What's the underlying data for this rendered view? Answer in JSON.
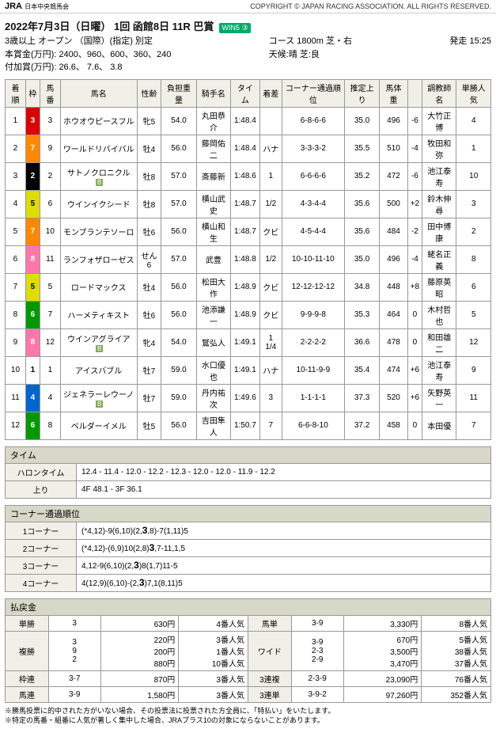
{
  "header": {
    "logo": "JRA",
    "logo_sub": "日本中央競馬会",
    "copyright": "COPYRIGHT © JAPAN RACING ASSOCIATION. ALL RIGHTS RESERVED."
  },
  "race": {
    "title": "2022年7月3日（日曜） 1回 函館8日 11R 巴賞",
    "win5_badge": "WIN5 ③",
    "grade": "3歳以上 オープン （国際）(指定) 別定",
    "prize": "本賞金(万円): 2400、960、600、360、240",
    "added": "付加賞(万円): 26.6、 7.6、 3.8",
    "course": "コース 1800m 芝・右",
    "weather": "天候:晴 芝:良",
    "start_time": "発走 15:25"
  },
  "cols": [
    "着順",
    "枠",
    "馬番",
    "馬名",
    "性齢",
    "負担重量",
    "騎手名",
    "タイム",
    "着差",
    "コーナー通過順位",
    "推定上り",
    "馬体重",
    "",
    "調教師名",
    "単勝人気"
  ],
  "rows": [
    {
      "rank": "1",
      "waku": "3",
      "wakuCls": "waku-3",
      "num": "3",
      "name": "ホウオウピースフル",
      "b": "",
      "sex": "牝5",
      "wt": "54.0",
      "jk": "丸田恭介",
      "time": "1:48.4",
      "mg": "",
      "cp": "6-8-6-6",
      "ag": "35.0",
      "bw": "496",
      "bd": "-6",
      "tr": "大竹正博",
      "pop": "4"
    },
    {
      "rank": "2",
      "waku": "7",
      "wakuCls": "waku-7",
      "num": "9",
      "name": "ワールドリバイバル",
      "b": "",
      "sex": "牡4",
      "wt": "56.0",
      "jk": "藤岡佑二",
      "time": "1:48.4",
      "mg": "ハナ",
      "cp": "3-3-3-2",
      "ag": "35.5",
      "bw": "510",
      "bd": "-4",
      "tr": "牧田和弥",
      "pop": "1"
    },
    {
      "rank": "3",
      "waku": "2",
      "wakuCls": "waku-2",
      "num": "2",
      "name": "サトノクロニクル",
      "b": "B",
      "sex": "牡8",
      "wt": "57.0",
      "jk": "斎藤新",
      "time": "1:48.6",
      "mg": "1",
      "cp": "6-6-6-6",
      "ag": "35.2",
      "bw": "472",
      "bd": "-6",
      "tr": "池江泰寿",
      "pop": "10"
    },
    {
      "rank": "4",
      "waku": "5",
      "wakuCls": "waku-5",
      "num": "6",
      "name": "ウインイクシード",
      "b": "",
      "sex": "牡8",
      "wt": "57.0",
      "jk": "横山武史",
      "time": "1:48.7",
      "mg": "1/2",
      "cp": "4-3-4-4",
      "ag": "35.6",
      "bw": "500",
      "bd": "+2",
      "tr": "鈴木伸尋",
      "pop": "3"
    },
    {
      "rank": "5",
      "waku": "7",
      "wakuCls": "waku-7",
      "num": "10",
      "name": "モンブランテソーロ",
      "b": "",
      "sex": "牡6",
      "wt": "56.0",
      "jk": "横山和生",
      "time": "1:48.7",
      "mg": "クビ",
      "cp": "4-5-4-4",
      "ag": "35.6",
      "bw": "484",
      "bd": "-2",
      "tr": "田中博康",
      "pop": "2"
    },
    {
      "rank": "6",
      "waku": "8",
      "wakuCls": "waku-8",
      "num": "11",
      "name": "ランフォザローゼス",
      "b": "",
      "sex": "せん6",
      "wt": "57.0",
      "jk": "武豊",
      "time": "1:48.8",
      "mg": "1/2",
      "cp": "10-10-11-10",
      "ag": "35.0",
      "bw": "496",
      "bd": "-4",
      "tr": "蛯名正義",
      "pop": "8"
    },
    {
      "rank": "7",
      "waku": "5",
      "wakuCls": "waku-5",
      "num": "5",
      "name": "ロードマックス",
      "b": "",
      "sex": "牡4",
      "wt": "56.0",
      "jk": "松田大作",
      "time": "1:48.9",
      "mg": "クビ",
      "cp": "12-12-12-12",
      "ag": "34.8",
      "bw": "448",
      "bd": "+8",
      "tr": "藤原英昭",
      "pop": "6"
    },
    {
      "rank": "8",
      "waku": "6",
      "wakuCls": "waku-6",
      "num": "7",
      "name": "ハーメティキスト",
      "b": "",
      "sex": "牡6",
      "wt": "56.0",
      "jk": "池添謙一",
      "time": "1:48.9",
      "mg": "クビ",
      "cp": "9-9-9-8",
      "ag": "35.3",
      "bw": "464",
      "bd": "0",
      "tr": "木村哲也",
      "pop": "5"
    },
    {
      "rank": "9",
      "waku": "8",
      "wakuCls": "waku-8",
      "num": "12",
      "name": "ウインアグライア",
      "b": "B",
      "sex": "牝4",
      "wt": "54.0",
      "jk": "鷲弘人",
      "time": "1:49.1",
      "mg": "1 1/4",
      "cp": "2-2-2-2",
      "ag": "36.6",
      "bw": "478",
      "bd": "0",
      "tr": "和田雄二",
      "pop": "12"
    },
    {
      "rank": "10",
      "waku": "1",
      "wakuCls": "waku-1",
      "num": "1",
      "name": "アイスバブル",
      "b": "",
      "sex": "牡7",
      "wt": "59.0",
      "jk": "水口優也",
      "time": "1:49.1",
      "mg": "ハナ",
      "cp": "10-11-9-9",
      "ag": "35.4",
      "bw": "474",
      "bd": "+6",
      "tr": "池江泰寿",
      "pop": "9"
    },
    {
      "rank": "11",
      "waku": "4",
      "wakuCls": "waku-4",
      "num": "4",
      "name": "ジェネラーレウーノ",
      "b": "B",
      "sex": "牡7",
      "wt": "59.0",
      "jk": "丹内祐次",
      "time": "1:49.6",
      "mg": "3",
      "cp": "1-1-1-1",
      "ag": "37.3",
      "bw": "520",
      "bd": "+6",
      "tr": "矢野英一",
      "pop": "11"
    },
    {
      "rank": "12",
      "waku": "6",
      "wakuCls": "waku-6",
      "num": "8",
      "name": "ベルダーイメル",
      "b": "",
      "sex": "牡5",
      "wt": "56.0",
      "jk": "吉田隼人",
      "time": "1:50.7",
      "mg": "7",
      "cp": "6-6-8-10",
      "ag": "37.2",
      "bw": "458",
      "bd": "0",
      "tr": "本田優",
      "pop": "7"
    }
  ],
  "time_section": {
    "title": "タイム",
    "furlong_label": "ハロンタイム",
    "furlong": "12.4 - 11.4 - 12.0 - 12.2 - 12.3 - 12.0 - 12.0 - 11.9 - 12.2",
    "agari_label": "上り",
    "agari": "4F 48.1 - 3F 36.1"
  },
  "corner": {
    "title": "コーナー通過順位",
    "labels": [
      "1コーナー",
      "2コーナー",
      "3コーナー",
      "4コーナー"
    ],
    "vals": [
      [
        "(*4,12)-9(6,10)(2,",
        "3",
        ",8)-7(1,11)5"
      ],
      [
        "(*4,12)-(6,9)10(2,8)",
        "3",
        ",7-11,1,5"
      ],
      [
        "4,12-9(6,10)(2,",
        "3",
        ")8(1,7)11-5"
      ],
      [
        "4(12,9)(6,10)-(2,",
        "3",
        ")7,1(8,11)5"
      ]
    ]
  },
  "payout": {
    "title": "払戻金",
    "rows": [
      [
        {
          "lbl": "単勝",
          "c": "3",
          "y": "630円",
          "p": "4番人気"
        },
        {
          "lbl": "馬単",
          "c": "3-9",
          "y": "3,330円",
          "p": "8番人気"
        }
      ],
      [
        {
          "lbl": "複勝",
          "c": "3\n9\n2",
          "y": "220円\n200円\n880円",
          "p": "3番人気\n1番人気\n10番人気"
        },
        {
          "lbl": "ワイド",
          "c": "3-9\n2-3\n2-9",
          "y": "670円\n3,500円\n3,470円",
          "p": "5番人気\n38番人気\n37番人気"
        }
      ],
      [
        {
          "lbl": "枠連",
          "c": "3-7",
          "y": "870円",
          "p": "3番人気"
        },
        {
          "lbl": "3連複",
          "c": "2-3-9",
          "y": "23,090円",
          "p": "76番人気"
        }
      ],
      [
        {
          "lbl": "馬連",
          "c": "3-9",
          "y": "1,580円",
          "p": "3番人気"
        },
        {
          "lbl": "3連単",
          "c": "3-9-2",
          "y": "97,260円",
          "p": "352番人気"
        }
      ]
    ]
  },
  "notes": [
    "※勝馬投票に的中された方がいない場合、その投票法に投票された方全員に、「特払い」をいたします。",
    "※特定の馬番・組番に人気が著しく集中した場合、JRAプラス10の対象にならないことがあります。"
  ]
}
